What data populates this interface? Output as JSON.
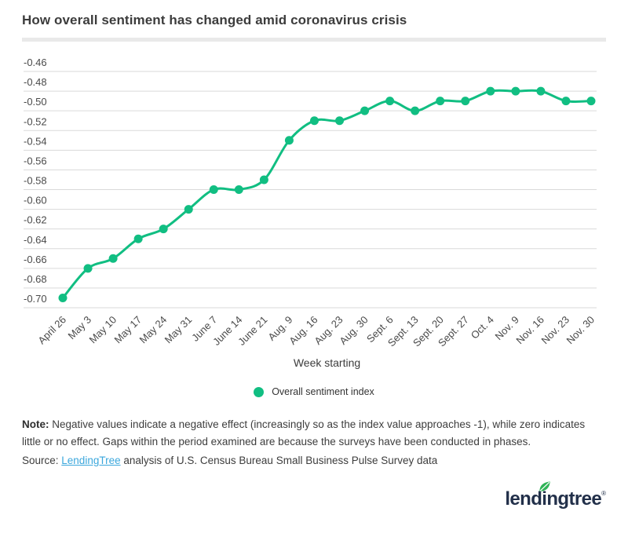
{
  "title": "How overall sentiment has changed amid coronavirus crisis",
  "chart_data": {
    "type": "line",
    "x": [
      "April 26",
      "May 3",
      "May 10",
      "May 17",
      "May 24",
      "May 31",
      "June 7",
      "June 14",
      "June 21",
      "Aug. 9",
      "Aug. 16",
      "Aug. 23",
      "Aug. 30",
      "Sept. 6",
      "Sept. 13",
      "Sept. 20",
      "Sept. 27",
      "Oct. 4",
      "Nov. 9",
      "Nov. 16",
      "Nov. 23",
      "Nov. 30"
    ],
    "series": [
      {
        "name": "Overall sentiment index",
        "values": [
          -0.69,
          -0.66,
          -0.65,
          -0.63,
          -0.62,
          -0.6,
          -0.58,
          -0.58,
          -0.57,
          -0.53,
          -0.51,
          -0.51,
          -0.5,
          -0.49,
          -0.5,
          -0.49,
          -0.49,
          -0.48,
          -0.48,
          -0.48,
          -0.49,
          -0.49
        ]
      }
    ],
    "xlabel": "Week starting",
    "ylim": [
      -0.7,
      -0.46
    ],
    "ytick_step": 0.02,
    "grid": true,
    "legend_position": "bottom-center"
  },
  "legend": {
    "label": "Overall sentiment index"
  },
  "notes": {
    "note_label": "Note:",
    "note_text": " Negative values indicate a negative effect (increasingly so as the index value approaches -1), while zero indicates little or no effect. Gaps within the period examined are because the surveys have been conducted in phases.",
    "source_label": "Source: ",
    "source_link_text": "LendingTree",
    "source_text": " analysis of U.S. Census Bureau Small Business Pulse Survey data"
  },
  "logo": {
    "brand": "lendingtree",
    "registered_mark": "®"
  },
  "colors": {
    "line": "#11be82",
    "grid": "#dadada",
    "axis_text": "#4a4a4a",
    "title_text": "#3c3c3c",
    "link_blue": "#3ba7dc",
    "logo_navy": "#22304a",
    "leaf_green": "#2fb457",
    "separator": "#e9e9e9"
  }
}
